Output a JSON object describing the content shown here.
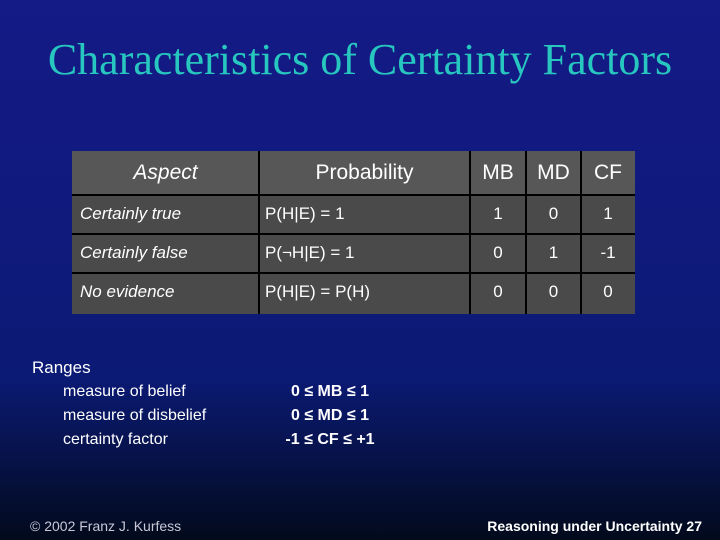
{
  "title": "Characteristics of Certainty Factors",
  "table": {
    "headers": [
      "Aspect",
      "Probability",
      "MB",
      "MD",
      "CF"
    ],
    "rows": [
      [
        "Certainly true",
        "P(H|E) = 1",
        "1",
        "0",
        "1"
      ],
      [
        "Certainly false",
        "P(¬H|E) = 1",
        "0",
        "1",
        "-1"
      ],
      [
        "No evidence",
        "P(H|E) = P(H)",
        "0",
        "0",
        "0"
      ]
    ]
  },
  "ranges": {
    "title": "Ranges",
    "items": [
      {
        "label": "measure of belief",
        "value": "0 ≤ MB ≤ 1"
      },
      {
        "label": "measure of disbelief",
        "value": "0 ≤ MD ≤ 1"
      },
      {
        "label": "certainty factor",
        "value": "-1 ≤ CF ≤ +1"
      }
    ]
  },
  "footer": {
    "copyright": "© 2002 Franz J. Kurfess",
    "section": "Reasoning under Uncertainty 27"
  }
}
